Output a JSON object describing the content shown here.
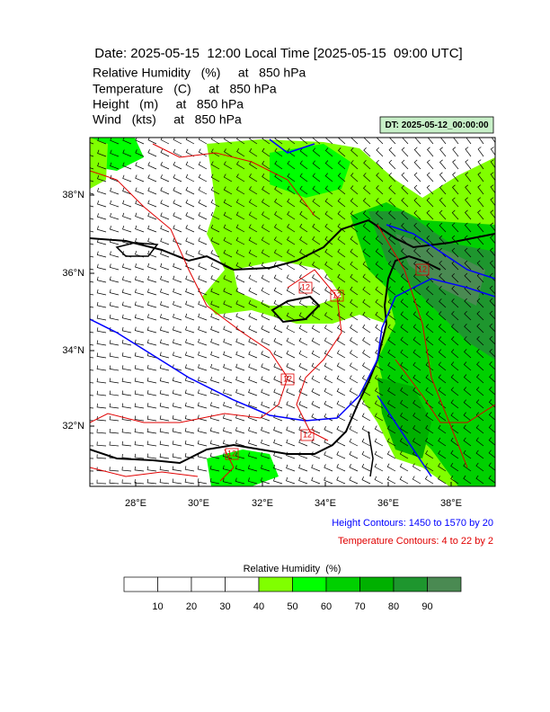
{
  "header": {
    "title": "Date: 2025-05-15  12:00 Local Time [2025-05-15  09:00 UTC]",
    "lines": [
      "Relative Humidity   (%)     at   850 hPa",
      "Temperature   (C)     at   850 hPa",
      "Height   (m)     at   850 hPa",
      "Wind   (kts)     at   850 hPa"
    ],
    "dt_label": "DT: 2025-05-12_00:00:00"
  },
  "map": {
    "lat_labels": [
      "38°N",
      "36°N",
      "34°N",
      "32°N"
    ],
    "lon_labels": [
      "28°E",
      "30°E",
      "32°E",
      "34°E",
      "36°E",
      "38°E"
    ],
    "contour_labels": [
      "12",
      "12",
      "12",
      "12",
      "12",
      "12"
    ]
  },
  "notes": {
    "height": "Height Contours: 1450 to 1570 by 20",
    "temperature": "Temperature Contours: 4 to 22 by 2"
  },
  "colorbar": {
    "title": "Relative Humidity  (%)",
    "ticks": [
      "10",
      "20",
      "30",
      "40",
      "50",
      "60",
      "70",
      "80",
      "90"
    ],
    "colors": [
      "#ffffff",
      "#ffffff",
      "#ffffff",
      "#ffffff",
      "#80ff00",
      "#00ff00",
      "#00d000",
      "#00b000",
      "#1e962e",
      "#4a8a52"
    ]
  }
}
